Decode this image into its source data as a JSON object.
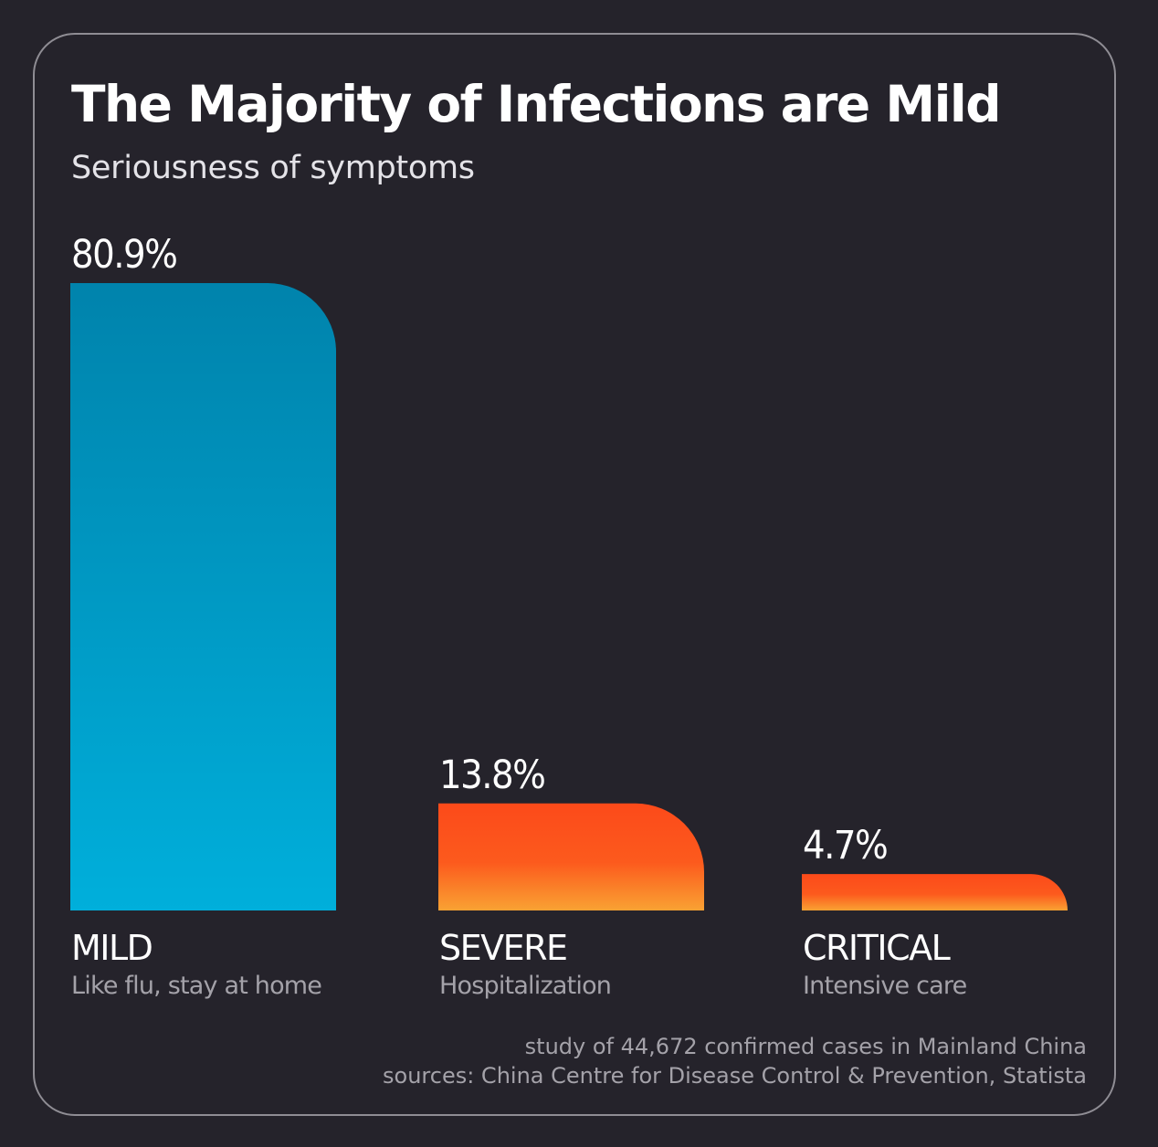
{
  "header": {
    "title": "The Majority of Infections are Mild",
    "subtitle": "Seriousness of symptoms"
  },
  "footer": {
    "note": "study of 44,672 confirmed cases in Mainland China",
    "sources": "sources: China Centre for Disease Control & Prevention, Statista"
  },
  "colors": {
    "background": "#25232b",
    "card_border": "#8f8d94",
    "mild_top": "#0083ac",
    "mild_bottom": "#00afdb",
    "severe_top": "#fc4a1a",
    "severe_bottom": "#f9a233",
    "text_primary": "#ffffff",
    "text_secondary": "#a4a2a9"
  },
  "chart_data": {
    "type": "bar",
    "title": "The Majority of Infections are Mild",
    "subtitle": "Seriousness of symptoms",
    "categories": [
      "MILD",
      "SEVERE",
      "CRITICAL"
    ],
    "category_descriptions": [
      "Like flu, stay at home",
      "Hospitalization",
      "Intensive care"
    ],
    "values": [
      80.9,
      13.8,
      4.7
    ],
    "value_labels": [
      "80.9%",
      "13.8%",
      "4.7%"
    ],
    "unit": "%",
    "ylim": [
      0,
      80.9
    ],
    "grid": false,
    "legend": "none"
  }
}
